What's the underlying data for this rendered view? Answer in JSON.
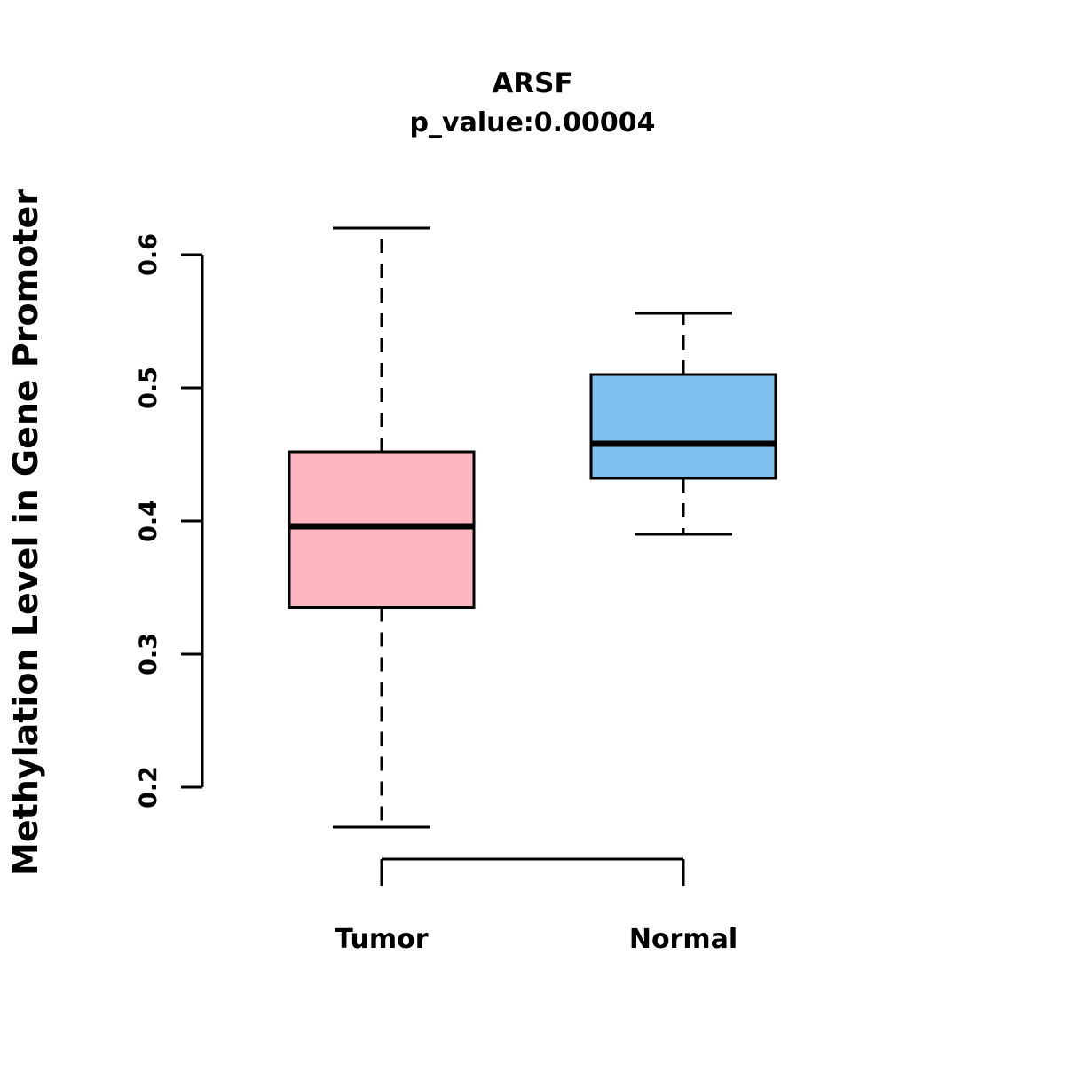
{
  "chart_data": {
    "type": "boxplot",
    "title": "ARSF",
    "subtitle": "p_value:0.00004",
    "ylabel": "Methylation Level in Gene Promoter",
    "xlabel": "",
    "categories": [
      "Tumor",
      "Normal"
    ],
    "y_ticks": [
      "0.2",
      "0.3",
      "0.4",
      "0.5",
      "0.6"
    ],
    "y_tick_values": [
      0.2,
      0.3,
      0.4,
      0.5,
      0.6
    ],
    "ylim": [
      0.2,
      0.6
    ],
    "grid": false,
    "legend": "none",
    "series": [
      {
        "name": "Tumor",
        "color": "#FFB6C1",
        "whisker_low": 0.17,
        "q1": 0.335,
        "median": 0.396,
        "q3": 0.452,
        "whisker_high": 0.62
      },
      {
        "name": "Normal",
        "color": "#7EC1EE",
        "whisker_low": 0.39,
        "q1": 0.432,
        "median": 0.458,
        "q3": 0.51,
        "whisker_high": 0.556
      }
    ],
    "style": {
      "box_border_color": "#000000",
      "median_color": "#000000",
      "whisker_style": "dashed",
      "background": "#ffffff"
    }
  }
}
